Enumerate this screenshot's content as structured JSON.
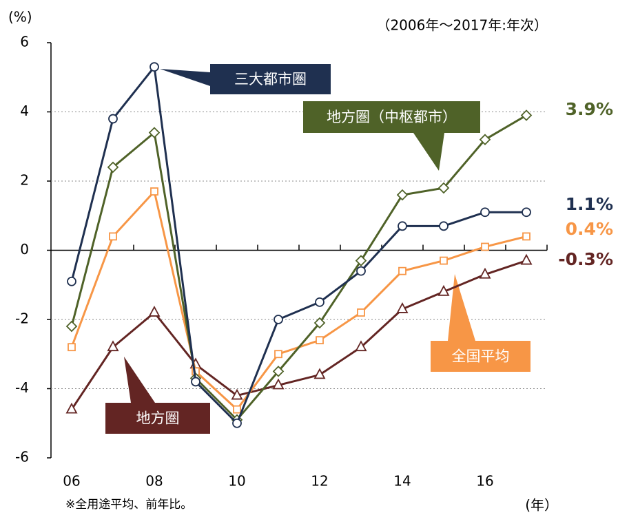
{
  "chart_data": {
    "type": "line",
    "y_unit": "(%)",
    "subtitle": "（2006年～2017年:年次）",
    "x_unit": "(年）",
    "note": "※全用途平均、前年比。",
    "categories": [
      "06",
      null,
      "08",
      null,
      "10",
      null,
      "12",
      null,
      "14",
      null,
      "16",
      null
    ],
    "ylim": [
      -6,
      6
    ],
    "yticks": [
      -6,
      -4,
      -2,
      0,
      2,
      4,
      6
    ],
    "grid": true,
    "series": [
      {
        "name": "三大都市圏",
        "color": "#1f3050",
        "marker": "circle",
        "values": [
          -0.9,
          3.8,
          5.3,
          -3.8,
          -5.0,
          -2.0,
          -1.5,
          -0.6,
          0.7,
          0.7,
          1.1,
          1.1
        ],
        "value_labels": [
          null,
          null,
          null,
          null,
          null,
          null,
          null,
          null,
          null,
          null,
          null,
          "1.1%"
        ]
      },
      {
        "name": "地方圏（中枢都市）",
        "color": "#4f6228",
        "marker": "diamond",
        "values": [
          -2.2,
          2.4,
          3.4,
          -3.7,
          -4.9,
          -3.5,
          -2.1,
          -0.3,
          1.6,
          1.8,
          3.2,
          3.9
        ],
        "value_labels": [
          null,
          null,
          null,
          null,
          null,
          null,
          null,
          null,
          null,
          null,
          null,
          "3.9%"
        ]
      },
      {
        "name": "全国平均",
        "color": "#f79646",
        "marker": "square",
        "values": [
          -2.8,
          0.4,
          1.7,
          -3.5,
          -4.6,
          -3.0,
          -2.6,
          -1.8,
          -0.6,
          -0.3,
          0.1,
          0.4
        ],
        "value_labels": [
          null,
          null,
          null,
          null,
          null,
          null,
          null,
          null,
          null,
          null,
          null,
          "0.4%"
        ]
      },
      {
        "name": "地方圏",
        "color": "#632523",
        "marker": "triangle",
        "values": [
          -4.6,
          -2.8,
          -1.8,
          -3.3,
          -4.2,
          -3.9,
          -3.6,
          -2.8,
          -1.7,
          -1.2,
          -0.7,
          -0.3
        ],
        "value_labels": [
          null,
          null,
          null,
          null,
          null,
          null,
          null,
          null,
          null,
          null,
          null,
          "-0.3%"
        ]
      }
    ]
  }
}
